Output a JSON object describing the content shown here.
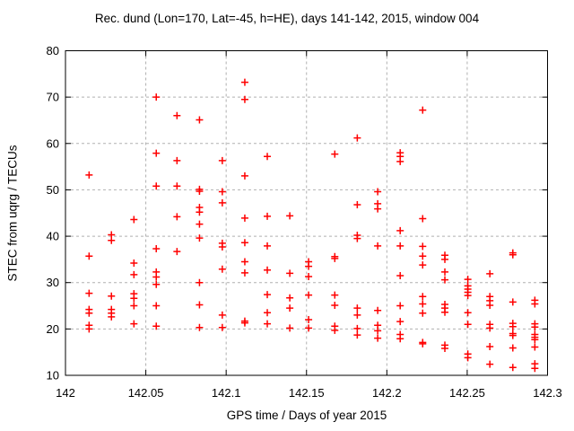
{
  "figure": {
    "background": "#ffffff"
  },
  "chart_data": {
    "type": "scatter",
    "title": "Rec. dund (Lon=170, Lat=-45, h=HE), days 141-142, 2015, window 004",
    "xlabel": "GPS time / Days of year 2015",
    "ylabel": "STEC from uqrg / TECUs",
    "xlim": [
      142,
      142.3
    ],
    "ylim": [
      10,
      80
    ],
    "xticks": [
      {
        "v": 142.0,
        "label": "142"
      },
      {
        "v": 142.05,
        "label": "142.05"
      },
      {
        "v": 142.1,
        "label": "142.1"
      },
      {
        "v": 142.15,
        "label": "142.15"
      },
      {
        "v": 142.2,
        "label": "142.2"
      },
      {
        "v": 142.25,
        "label": "142.25"
      },
      {
        "v": 142.3,
        "label": "142.3"
      }
    ],
    "yticks": [
      {
        "v": 10,
        "label": "10"
      },
      {
        "v": 20,
        "label": "20"
      },
      {
        "v": 30,
        "label": "30"
      },
      {
        "v": 40,
        "label": "40"
      },
      {
        "v": 50,
        "label": "50"
      },
      {
        "v": 60,
        "label": "60"
      },
      {
        "v": 70,
        "label": "70"
      },
      {
        "v": 80,
        "label": "80"
      }
    ],
    "grid": true,
    "legend": "none",
    "marker": "plus",
    "colors": {
      "points": "#ff0000",
      "grid": "#b0b0b0",
      "axis": "#000000",
      "text": "#000000"
    },
    "series": [
      {
        "name": "STEC",
        "points": [
          [
            142.0147,
            53.2
          ],
          [
            142.0147,
            35.7
          ],
          [
            142.0147,
            27.7
          ],
          [
            142.0147,
            24.2
          ],
          [
            142.0147,
            23.4
          ],
          [
            142.0147,
            20.8
          ],
          [
            142.0147,
            20.0
          ],
          [
            142.0286,
            40.3
          ],
          [
            142.0286,
            39.1
          ],
          [
            142.0286,
            27.1
          ],
          [
            142.0286,
            24.2
          ],
          [
            142.0286,
            23.4
          ],
          [
            142.0286,
            22.6
          ],
          [
            142.0426,
            43.6
          ],
          [
            142.0426,
            34.2
          ],
          [
            142.0426,
            31.7
          ],
          [
            142.0426,
            27.6
          ],
          [
            142.0426,
            26.6
          ],
          [
            142.0426,
            25.0
          ],
          [
            142.0426,
            21.1
          ],
          [
            142.0565,
            70.0
          ],
          [
            142.0565,
            57.9
          ],
          [
            142.0565,
            50.8
          ],
          [
            142.0565,
            37.3
          ],
          [
            142.0565,
            32.3
          ],
          [
            142.0565,
            31.2
          ],
          [
            142.0565,
            29.6
          ],
          [
            142.0565,
            25.0
          ],
          [
            142.0565,
            20.6
          ],
          [
            142.0694,
            66.0
          ],
          [
            142.0694,
            56.3
          ],
          [
            142.0694,
            50.8
          ],
          [
            142.0694,
            44.2
          ],
          [
            142.0694,
            36.7
          ],
          [
            142.0834,
            65.1
          ],
          [
            142.0834,
            50.1
          ],
          [
            142.0834,
            49.7
          ],
          [
            142.0834,
            46.2
          ],
          [
            142.0834,
            45.2
          ],
          [
            142.0834,
            42.6
          ],
          [
            142.0834,
            39.6
          ],
          [
            142.0834,
            30.0
          ],
          [
            142.0834,
            25.2
          ],
          [
            142.0834,
            20.3
          ],
          [
            142.0976,
            56.3
          ],
          [
            142.0976,
            49.6
          ],
          [
            142.0976,
            47.2
          ],
          [
            142.0976,
            38.5
          ],
          [
            142.0976,
            37.7
          ],
          [
            142.0976,
            32.9
          ],
          [
            142.0976,
            23.0
          ],
          [
            142.0976,
            20.3
          ],
          [
            142.1116,
            73.2
          ],
          [
            142.1116,
            69.5
          ],
          [
            142.1116,
            53.0
          ],
          [
            142.1116,
            43.9
          ],
          [
            142.1116,
            38.6
          ],
          [
            142.1116,
            34.5
          ],
          [
            142.1116,
            32.1
          ],
          [
            142.1116,
            21.7
          ],
          [
            142.1116,
            21.3
          ],
          [
            142.1256,
            57.2
          ],
          [
            142.1256,
            44.3
          ],
          [
            142.1256,
            37.9
          ],
          [
            142.1256,
            32.7
          ],
          [
            142.1256,
            27.4
          ],
          [
            142.1256,
            23.5
          ],
          [
            142.1256,
            21.1
          ],
          [
            142.1396,
            44.4
          ],
          [
            142.1396,
            32.0
          ],
          [
            142.1396,
            26.7
          ],
          [
            142.1396,
            24.5
          ],
          [
            142.1396,
            20.2
          ],
          [
            142.1513,
            34.5
          ],
          [
            142.1513,
            33.5
          ],
          [
            142.1513,
            31.3
          ],
          [
            142.1513,
            27.3
          ],
          [
            142.1513,
            22.0
          ],
          [
            142.1513,
            20.2
          ],
          [
            142.1676,
            57.7
          ],
          [
            142.1676,
            35.6
          ],
          [
            142.1676,
            35.2
          ],
          [
            142.1676,
            27.3
          ],
          [
            142.1676,
            25.1
          ],
          [
            142.1676,
            20.6
          ],
          [
            142.1676,
            19.7
          ],
          [
            142.1816,
            61.2
          ],
          [
            142.1816,
            46.8
          ],
          [
            142.1816,
            40.2
          ],
          [
            142.1816,
            39.5
          ],
          [
            142.1816,
            24.5
          ],
          [
            142.1816,
            23.0
          ],
          [
            142.1816,
            20.1
          ],
          [
            142.1816,
            18.7
          ],
          [
            142.1943,
            49.6
          ],
          [
            142.1943,
            47.0
          ],
          [
            142.1943,
            45.9
          ],
          [
            142.1943,
            37.9
          ],
          [
            142.1943,
            24.0
          ],
          [
            142.1943,
            20.8
          ],
          [
            142.1943,
            19.6
          ],
          [
            142.1943,
            18.0
          ],
          [
            142.2083,
            58.0
          ],
          [
            142.2083,
            57.2
          ],
          [
            142.2083,
            56.1
          ],
          [
            142.2083,
            41.2
          ],
          [
            142.2083,
            37.9
          ],
          [
            142.2083,
            31.5
          ],
          [
            142.2083,
            25.0
          ],
          [
            142.2083,
            21.6
          ],
          [
            142.2083,
            18.8
          ],
          [
            142.2083,
            17.9
          ],
          [
            142.2223,
            67.2
          ],
          [
            142.2223,
            43.8
          ],
          [
            142.2223,
            37.8
          ],
          [
            142.2223,
            35.7
          ],
          [
            142.2223,
            33.8
          ],
          [
            142.2223,
            27.0
          ],
          [
            142.2223,
            25.4
          ],
          [
            142.2223,
            23.4
          ],
          [
            142.2223,
            17.1
          ],
          [
            142.2223,
            16.8
          ],
          [
            142.2361,
            35.9
          ],
          [
            142.2361,
            35.0
          ],
          [
            142.2361,
            32.3
          ],
          [
            142.2361,
            30.6
          ],
          [
            142.2361,
            25.3
          ],
          [
            142.2361,
            24.5
          ],
          [
            142.2361,
            23.6
          ],
          [
            142.2361,
            16.5
          ],
          [
            142.2361,
            15.8
          ],
          [
            142.2504,
            30.7
          ],
          [
            142.2504,
            29.3
          ],
          [
            142.2504,
            28.6
          ],
          [
            142.2504,
            27.9
          ],
          [
            142.2504,
            27.2
          ],
          [
            142.2504,
            23.5
          ],
          [
            142.2504,
            21.0
          ],
          [
            142.2504,
            14.6
          ],
          [
            142.2504,
            13.8
          ],
          [
            142.2641,
            31.9
          ],
          [
            142.2641,
            27.0
          ],
          [
            142.2641,
            26.1
          ],
          [
            142.2641,
            25.1
          ],
          [
            142.2641,
            21.0
          ],
          [
            142.2641,
            20.2
          ],
          [
            142.2641,
            16.2
          ],
          [
            142.2641,
            12.4
          ],
          [
            142.2784,
            36.4
          ],
          [
            142.2784,
            36.0
          ],
          [
            142.2784,
            25.8
          ],
          [
            142.2784,
            21.2
          ],
          [
            142.2784,
            20.5
          ],
          [
            142.2784,
            19.0
          ],
          [
            142.2784,
            18.6
          ],
          [
            142.2784,
            15.9
          ],
          [
            142.2784,
            11.7
          ],
          [
            142.2921,
            26.2
          ],
          [
            142.2921,
            25.4
          ],
          [
            142.2921,
            21.1
          ],
          [
            142.2921,
            20.4
          ],
          [
            142.2921,
            18.8
          ],
          [
            142.2921,
            18.2
          ],
          [
            142.2921,
            17.7
          ],
          [
            142.2921,
            16.1
          ],
          [
            142.2921,
            12.5
          ],
          [
            142.2921,
            11.5
          ]
        ]
      }
    ]
  }
}
